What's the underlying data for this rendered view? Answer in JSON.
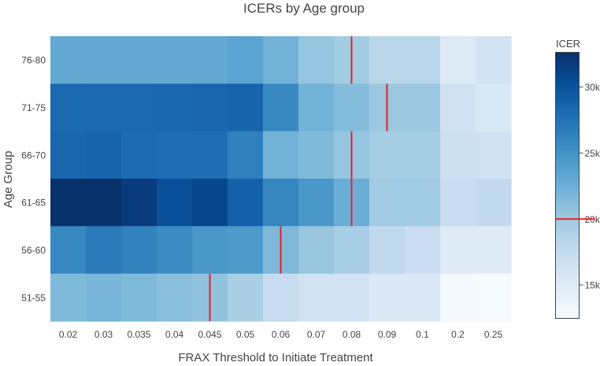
{
  "chart_data": {
    "type": "heatmap",
    "title": "ICERs by Age group",
    "xlabel": "FRAX Threshold to Initiate Treatment",
    "ylabel": "Age Group",
    "x_categories": [
      "0.02",
      "0.03",
      "0.035",
      "0.04",
      "0.045",
      "0.05",
      "0.06",
      "0.07",
      "0.08",
      "0.09",
      "0.1",
      "0.2",
      "0.25"
    ],
    "y_categories": [
      "76-80",
      "71-75",
      "66-70",
      "61-65",
      "56-60",
      "51-55"
    ],
    "z": [
      [
        23000,
        23000,
        23000,
        23000,
        23000,
        23500,
        22200,
        20500,
        19800,
        18300,
        18300,
        15200,
        16200
      ],
      [
        28200,
        28200,
        28200,
        28300,
        28400,
        28600,
        25800,
        22200,
        21300,
        20200,
        20200,
        16500,
        15500
      ],
      [
        28400,
        28600,
        28000,
        27800,
        27800,
        26400,
        22200,
        21500,
        20500,
        19600,
        19600,
        16800,
        16600
      ],
      [
        32600,
        32600,
        31700,
        30300,
        30900,
        28800,
        26000,
        24600,
        22600,
        19900,
        19900,
        17300,
        17800
      ],
      [
        25800,
        26900,
        26300,
        25500,
        24600,
        24300,
        21600,
        20300,
        19400,
        17800,
        17000,
        15000,
        15000
      ],
      [
        21500,
        21800,
        21500,
        21000,
        20700,
        19300,
        17300,
        16400,
        16300,
        15300,
        15300,
        12800,
        12700
      ]
    ],
    "zmin": 12500,
    "zmax": 32600,
    "threshold_markers": [
      {
        "row": "76-80",
        "x_position": 8.5
      },
      {
        "row": "71-75",
        "x_position": 9.5
      },
      {
        "row": "66-70",
        "x_position": 8.5
      },
      {
        "row": "61-65",
        "x_position": 8.5
      },
      {
        "row": "56-60",
        "x_position": 6.5
      },
      {
        "row": "51-55",
        "x_position": 4.5
      }
    ],
    "colorbar": {
      "title": "ICER",
      "ticks": [
        15000,
        20000,
        25000,
        30000
      ],
      "tick_labels": [
        "15k",
        "20k",
        "25k",
        "30k"
      ],
      "marker_value": 20000
    },
    "marker_color": "#e8202a"
  }
}
